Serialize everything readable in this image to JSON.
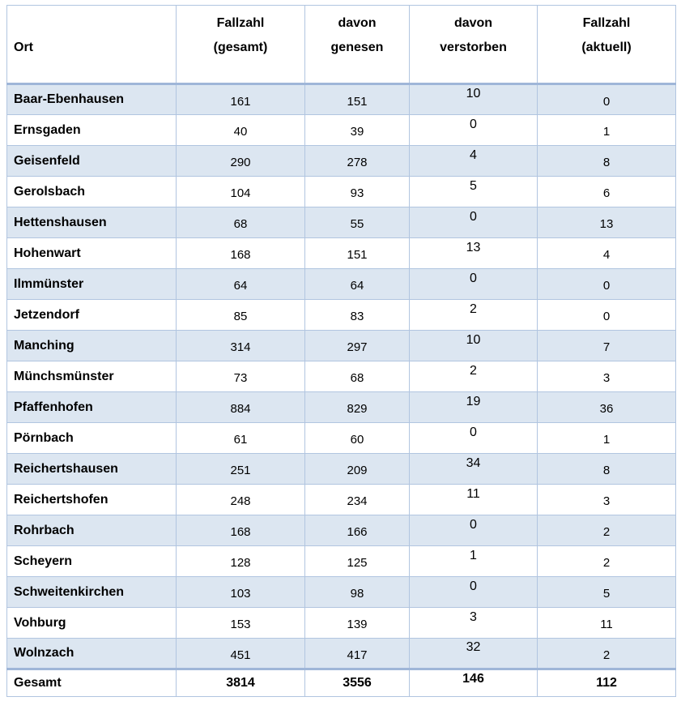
{
  "table": {
    "title": "corona-fallzahlen-je-ort",
    "column_keys": [
      "ort",
      "gesamt",
      "genesen",
      "verstorben",
      "aktuell"
    ],
    "header": {
      "ort": {
        "line1": "",
        "line2": "Ort"
      },
      "gesamt": {
        "line1": "Fallzahl",
        "line2": "(gesamt)"
      },
      "genesen": {
        "line1": "davon",
        "line2": "genesen"
      },
      "verstorben": {
        "line1": "davon",
        "line2": "verstorben"
      },
      "aktuell": {
        "line1": "Fallzahl",
        "line2": "(aktuell)"
      }
    },
    "rows": [
      {
        "ort": "Baar-Ebenhausen",
        "gesamt": "161",
        "genesen": "151",
        "verstorben": "10",
        "aktuell": "0"
      },
      {
        "ort": "Ernsgaden",
        "gesamt": "40",
        "genesen": "39",
        "verstorben": "0",
        "aktuell": "1"
      },
      {
        "ort": "Geisenfeld",
        "gesamt": "290",
        "genesen": "278",
        "verstorben": "4",
        "aktuell": "8"
      },
      {
        "ort": "Gerolsbach",
        "gesamt": "104",
        "genesen": "93",
        "verstorben": "5",
        "aktuell": "6"
      },
      {
        "ort": "Hettenshausen",
        "gesamt": "68",
        "genesen": "55",
        "verstorben": "0",
        "aktuell": "13"
      },
      {
        "ort": "Hohenwart",
        "gesamt": "168",
        "genesen": "151",
        "verstorben": "13",
        "aktuell": "4"
      },
      {
        "ort": "Ilmmünster",
        "gesamt": "64",
        "genesen": "64",
        "verstorben": "0",
        "aktuell": "0"
      },
      {
        "ort": "Jetzendorf",
        "gesamt": "85",
        "genesen": "83",
        "verstorben": "2",
        "aktuell": "0"
      },
      {
        "ort": "Manching",
        "gesamt": "314",
        "genesen": "297",
        "verstorben": "10",
        "aktuell": "7"
      },
      {
        "ort": "Münchsmünster",
        "gesamt": "73",
        "genesen": "68",
        "verstorben": "2",
        "aktuell": "3"
      },
      {
        "ort": "Pfaffenhofen",
        "gesamt": "884",
        "genesen": "829",
        "verstorben": "19",
        "aktuell": "36"
      },
      {
        "ort": "Pörnbach",
        "gesamt": "61",
        "genesen": "60",
        "verstorben": "0",
        "aktuell": "1"
      },
      {
        "ort": "Reichertshausen",
        "gesamt": "251",
        "genesen": "209",
        "verstorben": "34",
        "aktuell": "8"
      },
      {
        "ort": "Reichertshofen",
        "gesamt": "248",
        "genesen": "234",
        "verstorben": "11",
        "aktuell": "3"
      },
      {
        "ort": "Rohrbach",
        "gesamt": "168",
        "genesen": "166",
        "verstorben": "0",
        "aktuell": "2"
      },
      {
        "ort": "Scheyern",
        "gesamt": "128",
        "genesen": "125",
        "verstorben": "1",
        "aktuell": "2"
      },
      {
        "ort": "Schweitenkirchen",
        "gesamt": "103",
        "genesen": "98",
        "verstorben": "0",
        "aktuell": "5"
      },
      {
        "ort": "Vohburg",
        "gesamt": "153",
        "genesen": "139",
        "verstorben": "3",
        "aktuell": "11"
      },
      {
        "ort": "Wolnzach",
        "gesamt": "451",
        "genesen": "417",
        "verstorben": "32",
        "aktuell": "2"
      }
    ],
    "total": {
      "ort": "Gesamt",
      "gesamt": "3814",
      "genesen": "3556",
      "verstorben": "146",
      "aktuell": "112"
    },
    "colors": {
      "row_shade": "#dce6f1",
      "border": "#b1c5e0",
      "border_thick": "#9fb6d8",
      "background": "#ffffff",
      "text": "#000000"
    }
  },
  "chart_data": {
    "type": "table",
    "title": "Corona-Fallzahlen je Ort",
    "columns": [
      "Ort",
      "Fallzahl (gesamt)",
      "davon genesen",
      "davon verstorben",
      "Fallzahl (aktuell)"
    ],
    "rows": [
      [
        "Baar-Ebenhausen",
        161,
        151,
        10,
        0
      ],
      [
        "Ernsgaden",
        40,
        39,
        0,
        1
      ],
      [
        "Geisenfeld",
        290,
        278,
        4,
        8
      ],
      [
        "Gerolsbach",
        104,
        93,
        5,
        6
      ],
      [
        "Hettenshausen",
        68,
        55,
        0,
        13
      ],
      [
        "Hohenwart",
        168,
        151,
        13,
        4
      ],
      [
        "Ilmmünster",
        64,
        64,
        0,
        0
      ],
      [
        "Jetzendorf",
        85,
        83,
        2,
        0
      ],
      [
        "Manching",
        314,
        297,
        10,
        7
      ],
      [
        "Münchsmünster",
        73,
        68,
        2,
        3
      ],
      [
        "Pfaffenhofen",
        884,
        829,
        19,
        36
      ],
      [
        "Pörnbach",
        61,
        60,
        0,
        1
      ],
      [
        "Reichertshausen",
        251,
        209,
        34,
        8
      ],
      [
        "Reichertshofen",
        248,
        234,
        11,
        3
      ],
      [
        "Rohrbach",
        168,
        166,
        0,
        2
      ],
      [
        "Scheyern",
        128,
        125,
        1,
        2
      ],
      [
        "Schweitenkirchen",
        103,
        98,
        0,
        5
      ],
      [
        "Vohburg",
        153,
        139,
        3,
        11
      ],
      [
        "Wolnzach",
        451,
        417,
        32,
        2
      ],
      [
        "Gesamt",
        3814,
        3556,
        146,
        112
      ]
    ]
  }
}
